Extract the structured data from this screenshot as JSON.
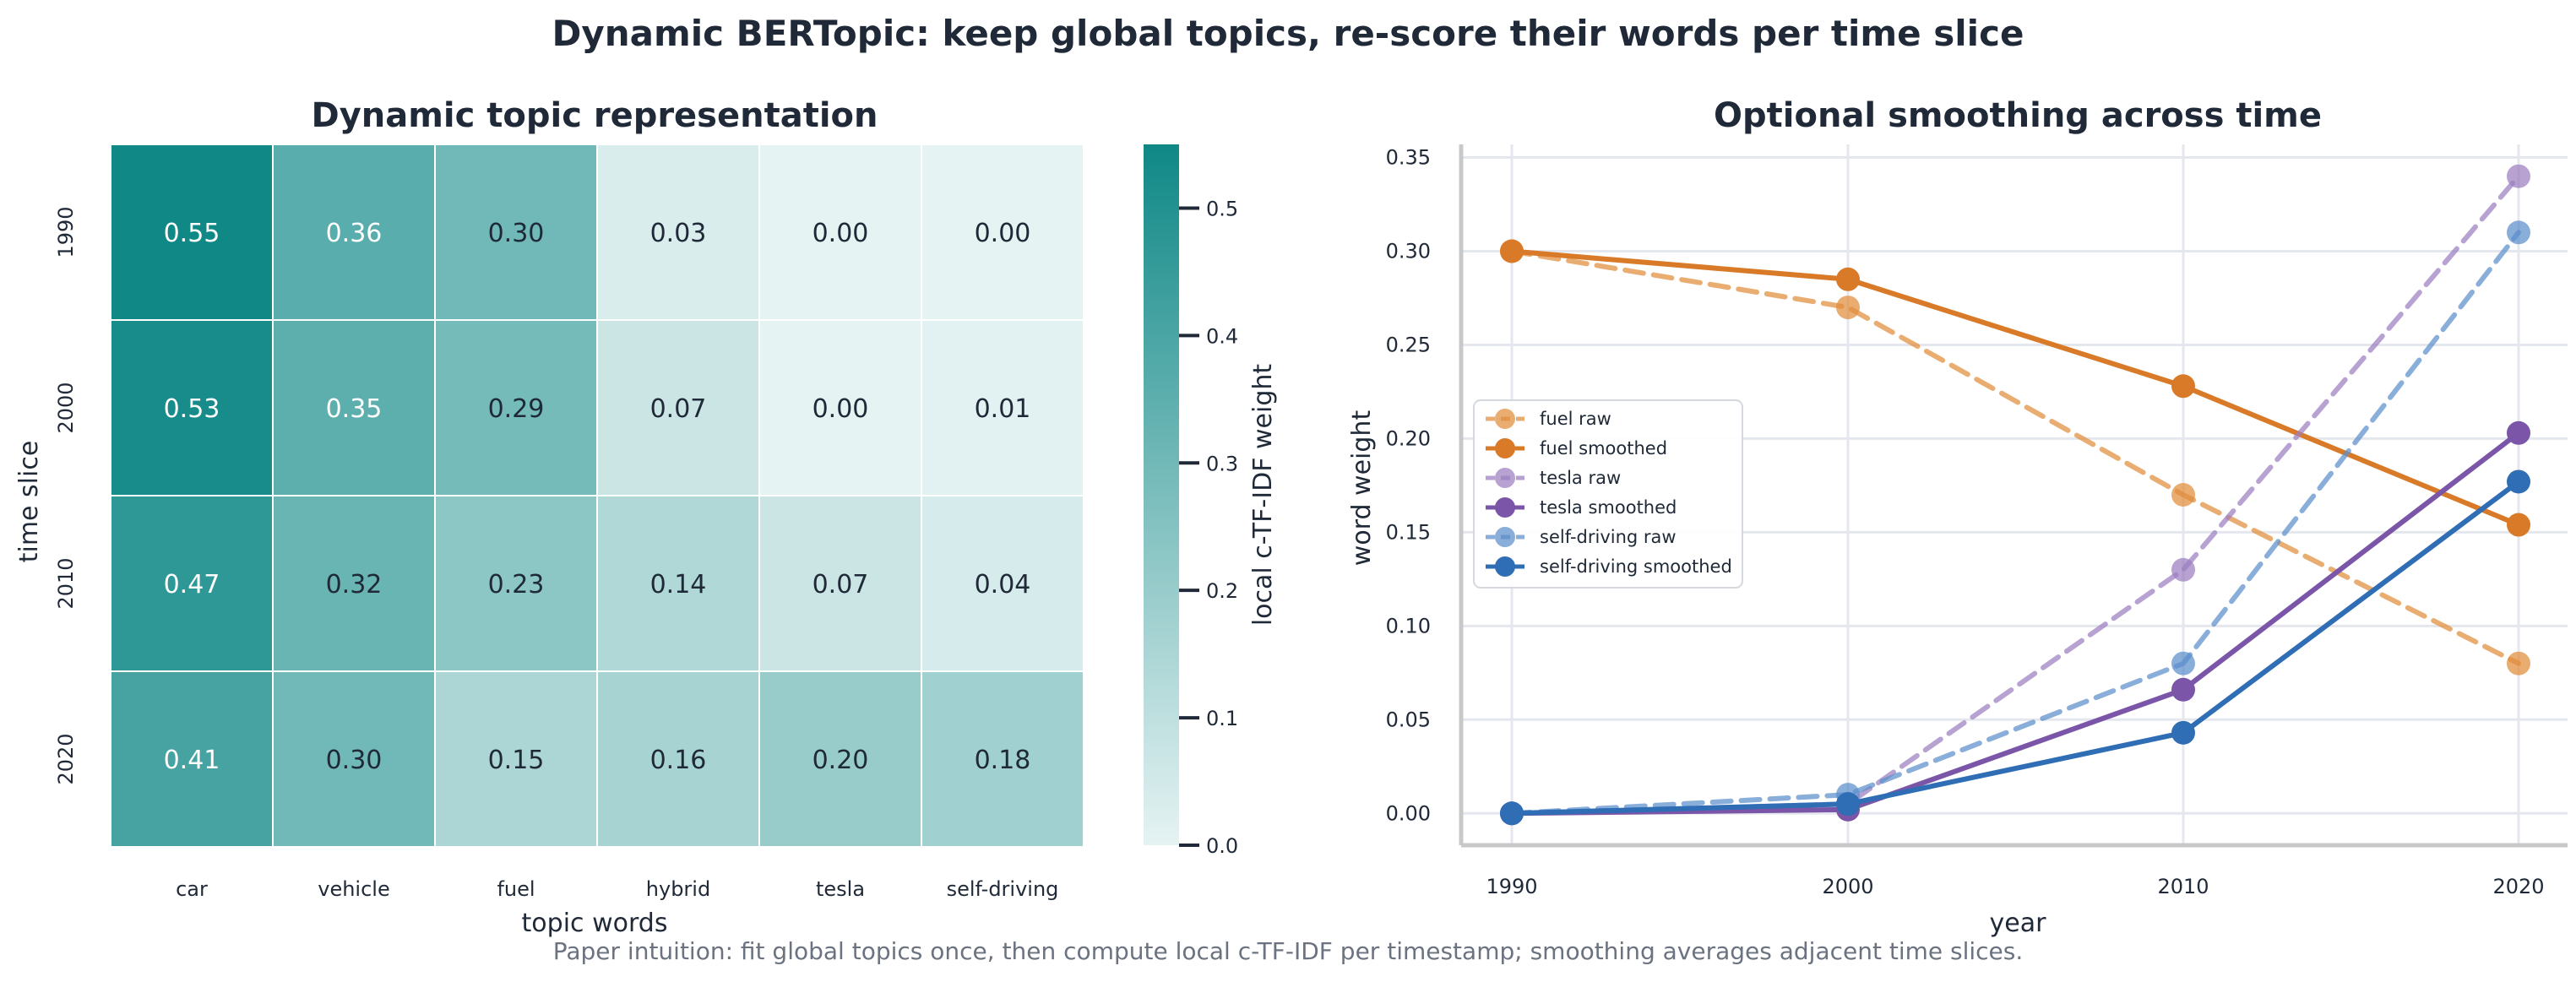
{
  "figure": {
    "suptitle": "Dynamic BERTopic: keep global topics, re-score their words per time slice",
    "caption": "Paper intuition: fit global topics once, then compute local c-TF-IDF per timestamp; smoothing averages adjacent time slices."
  },
  "chart_data": [
    {
      "type": "heatmap",
      "title": "Dynamic topic representation",
      "xlabel": "topic words",
      "ylabel": "time slice",
      "x_categories": [
        "car",
        "vehicle",
        "fuel",
        "hybrid",
        "tesla",
        "self-driving"
      ],
      "y_categories": [
        "1990",
        "2000",
        "2010",
        "2020"
      ],
      "values": [
        [
          0.55,
          0.36,
          0.3,
          0.03,
          0.0,
          0.0
        ],
        [
          0.53,
          0.35,
          0.29,
          0.07,
          0.0,
          0.01
        ],
        [
          0.47,
          0.32,
          0.23,
          0.14,
          0.07,
          0.04
        ],
        [
          0.41,
          0.3,
          0.15,
          0.16,
          0.2,
          0.18
        ]
      ],
      "cell_labels": [
        [
          "0.55",
          "0.36",
          "0.30",
          "0.03",
          "0.00",
          "0.00"
        ],
        [
          "0.53",
          "0.35",
          "0.29",
          "0.07",
          "0.00",
          "0.01"
        ],
        [
          "0.47",
          "0.32",
          "0.23",
          "0.14",
          "0.07",
          "0.04"
        ],
        [
          "0.41",
          "0.30",
          "0.15",
          "0.16",
          "0.20",
          "0.18"
        ]
      ],
      "colorbar": {
        "label": "local c-TF-IDF weight",
        "range": [
          0.0,
          0.55
        ],
        "ticks": [
          "0.0",
          "0.1",
          "0.2",
          "0.3",
          "0.4",
          "0.5"
        ],
        "color_low": "#e6f3f3",
        "color_high": "#0f8886"
      }
    },
    {
      "type": "line",
      "title": "Optional smoothing across time",
      "xlabel": "year",
      "ylabel": "word weight",
      "x": [
        "1990",
        "2000",
        "2010",
        "2020"
      ],
      "ylim": [
        -0.017,
        0.357
      ],
      "yticks": [
        "0.00",
        "0.05",
        "0.10",
        "0.15",
        "0.20",
        "0.25",
        "0.30",
        "0.35"
      ],
      "grid": true,
      "legend_position": "center-left",
      "series": [
        {
          "name": "fuel raw",
          "values": [
            0.3,
            0.27,
            0.17,
            0.08
          ],
          "color": "#e08e3b",
          "style": "dashed"
        },
        {
          "name": "fuel smoothed",
          "values": [
            0.3,
            0.285,
            0.228,
            0.154
          ],
          "color": "#d97a28",
          "style": "solid"
        },
        {
          "name": "tesla raw",
          "values": [
            0.0,
            0.005,
            0.13,
            0.34
          ],
          "color": "#9b7ec1",
          "style": "dashed"
        },
        {
          "name": "tesla smoothed",
          "values": [
            0.0,
            0.002,
            0.066,
            0.203
          ],
          "color": "#7b55a8",
          "style": "solid"
        },
        {
          "name": "self-driving raw",
          "values": [
            0.0,
            0.01,
            0.08,
            0.31
          ],
          "color": "#5c8fcb",
          "style": "dashed"
        },
        {
          "name": "self-driving smoothed",
          "values": [
            0.0,
            0.005,
            0.043,
            0.177
          ],
          "color": "#2f6db5",
          "style": "solid"
        }
      ]
    }
  ]
}
